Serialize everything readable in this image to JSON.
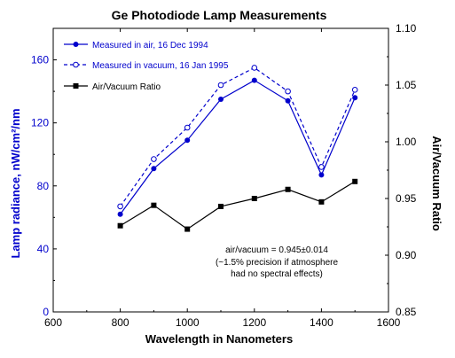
{
  "chart_data": {
    "type": "line",
    "title": "Ge Photodiode Lamp Measurements",
    "xlabel": "Wavelength in Nanometers",
    "ylabel": "Lamp radiance, nW/cm²/nm",
    "y2label": "Air/Vacuum Ratio",
    "xlim": [
      600,
      1600
    ],
    "ylim": [
      0,
      180
    ],
    "y2lim": [
      0.85,
      1.1
    ],
    "x_ticks": [
      "600",
      "800",
      "1000",
      "1200",
      "1400",
      "1600"
    ],
    "y_ticks": [
      "0",
      "40",
      "80",
      "120",
      "160"
    ],
    "y2_ticks": [
      "0.85",
      "0.90",
      "0.95",
      "1.00",
      "1.05",
      "1.10"
    ],
    "grid": false,
    "legend_position": "top-left",
    "colors": {
      "air": "#0000cc",
      "vacuum": "#0000cc",
      "ratio": "#000000",
      "left_axis_label": "#0000cc"
    },
    "series": [
      {
        "name": "Measured in air, 16 Dec 1994",
        "axis": "left",
        "style": "solid-filled-circle",
        "x": [
          800,
          900,
          1000,
          1100,
          1200,
          1300,
          1400,
          1500
        ],
        "values": [
          62,
          91,
          109,
          135,
          147,
          134,
          87,
          136
        ]
      },
      {
        "name": "Measured in vacuum, 16 Jan 1995",
        "axis": "left",
        "style": "dashed-open-circle",
        "x": [
          800,
          900,
          1000,
          1100,
          1200,
          1300,
          1400,
          1500
        ],
        "values": [
          67,
          97,
          117,
          144,
          155,
          140,
          92,
          141
        ]
      },
      {
        "name": "Air/Vacuum Ratio",
        "axis": "right",
        "style": "solid-filled-square",
        "x": [
          800,
          900,
          1000,
          1100,
          1200,
          1300,
          1400,
          1500
        ],
        "values": [
          0.926,
          0.944,
          0.923,
          0.943,
          0.95,
          0.958,
          0.947,
          0.965
        ]
      }
    ],
    "annotation": [
      "air/vacuum = 0.945±0.014",
      "(~1.5% precision if atmosphere",
      "had no spectral effects)"
    ]
  }
}
